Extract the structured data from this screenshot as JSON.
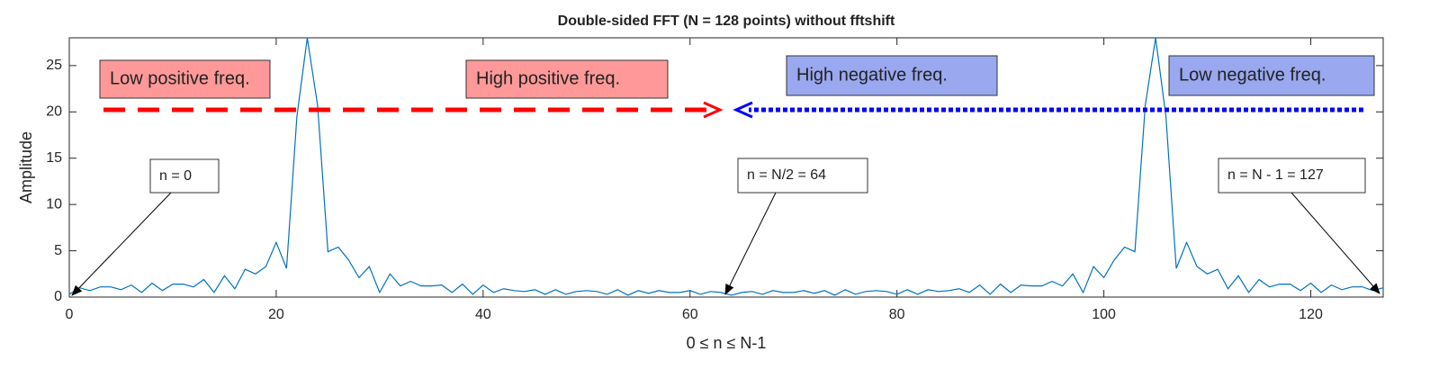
{
  "chart_data": {
    "type": "line",
    "title": "Double-sided FFT (N = 128 points) without fftshift",
    "xlabel": "0 ≤ n ≤ N-1",
    "ylabel": "Amplitude",
    "x": [
      0,
      1,
      2,
      3,
      4,
      5,
      6,
      7,
      8,
      9,
      10,
      11,
      12,
      13,
      14,
      15,
      16,
      17,
      18,
      19,
      20,
      21,
      22,
      23,
      24,
      25,
      26,
      27,
      28,
      29,
      30,
      31,
      32,
      33,
      34,
      35,
      36,
      37,
      38,
      39,
      40,
      41,
      42,
      43,
      44,
      45,
      46,
      47,
      48,
      49,
      50,
      51,
      52,
      53,
      54,
      55,
      56,
      57,
      58,
      59,
      60,
      61,
      62,
      63,
      64,
      65,
      66,
      67,
      68,
      69,
      70,
      71,
      72,
      73,
      74,
      75,
      76,
      77,
      78,
      79,
      80,
      81,
      82,
      83,
      84,
      85,
      86,
      87,
      88,
      89,
      90,
      91,
      92,
      93,
      94,
      95,
      96,
      97,
      98,
      99,
      100,
      101,
      102,
      103,
      104,
      105,
      106,
      107,
      108,
      109,
      110,
      111,
      112,
      113,
      114,
      115,
      116,
      117,
      118,
      119,
      120,
      121,
      122,
      123,
      124,
      125,
      126,
      127
    ],
    "values": [
      0.3,
      1.0,
      0.7,
      1.1,
      1.1,
      0.8,
      1.3,
      0.5,
      1.5,
      0.7,
      1.4,
      1.4,
      1.1,
      1.9,
      0.5,
      2.3,
      0.9,
      3.0,
      2.5,
      3.3,
      5.9,
      3.1,
      19.5,
      28,
      20.7,
      4.9,
      5.4,
      4.0,
      2.1,
      3.3,
      0.5,
      2.5,
      1.2,
      1.7,
      1.2,
      1.2,
      1.3,
      0.5,
      1.4,
      0.3,
      1.3,
      0.5,
      0.9,
      0.7,
      0.6,
      0.8,
      0.3,
      0.8,
      0.3,
      0.6,
      0.7,
      0.6,
      0.3,
      0.8,
      0.2,
      0.7,
      0.4,
      0.7,
      0.5,
      0.5,
      0.7,
      0.3,
      0.6,
      0.5,
      0.2,
      0.5,
      0.6,
      0.3,
      0.7,
      0.5,
      0.5,
      0.7,
      0.4,
      0.7,
      0.2,
      0.8,
      0.3,
      0.6,
      0.7,
      0.6,
      0.3,
      0.8,
      0.3,
      0.8,
      0.6,
      0.7,
      0.9,
      0.5,
      1.3,
      0.3,
      1.4,
      0.5,
      1.3,
      1.2,
      1.2,
      1.7,
      1.2,
      2.5,
      0.5,
      3.3,
      2.1,
      4.0,
      5.4,
      4.9,
      20.7,
      28,
      19.5,
      3.1,
      5.9,
      3.3,
      2.5,
      3.0,
      0.9,
      2.3,
      0.5,
      1.9,
      1.1,
      1.4,
      1.4,
      0.7,
      1.5,
      0.5,
      1.3,
      0.8,
      1.1,
      1.1,
      0.7,
      1.0
    ],
    "color": "#0072bd",
    "xlim": [
      0,
      127
    ],
    "ylim": [
      0,
      28
    ],
    "xticks": [
      0,
      20,
      40,
      60,
      80,
      100,
      120
    ],
    "yticks": [
      0,
      5,
      10,
      15,
      20,
      25
    ],
    "grid": false,
    "annotations": [
      "Low positive freq.",
      "High positive freq.",
      "High negative freq.",
      "Low negative freq.",
      "n = 0",
      "n = N/2 = 64",
      "n = N - 1 = 127"
    ]
  }
}
